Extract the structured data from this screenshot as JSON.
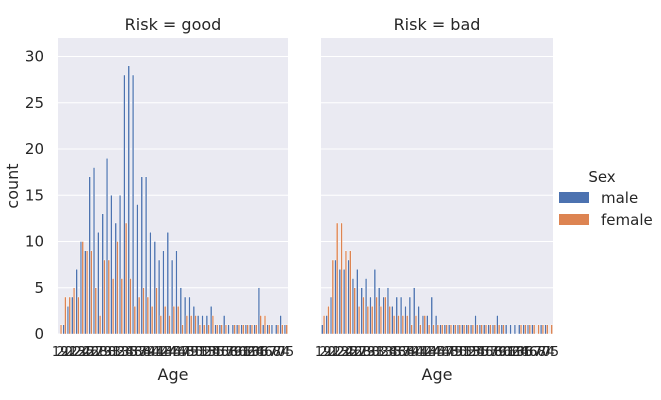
{
  "chart_data": {
    "type": "bar",
    "hue_title": "Sex",
    "x_label": "Age",
    "y_label": "count",
    "ylim": [
      0,
      32
    ],
    "y_ticks": [
      0,
      5,
      10,
      15,
      20,
      25,
      30
    ],
    "grid": true,
    "legend_position": "right",
    "categories": [
      19,
      20,
      21,
      22,
      23,
      24,
      25,
      26,
      27,
      28,
      29,
      30,
      31,
      32,
      33,
      34,
      35,
      36,
      37,
      38,
      39,
      40,
      41,
      42,
      43,
      44,
      45,
      46,
      47,
      48,
      49,
      50,
      51,
      52,
      53,
      54,
      55,
      56,
      57,
      58,
      59,
      60,
      61,
      62,
      63,
      64,
      65,
      66,
      67,
      68,
      70,
      74,
      75
    ],
    "series_styles": [
      {
        "name": "male",
        "color": "#4c72b0"
      },
      {
        "name": "female",
        "color": "#dd8452"
      }
    ],
    "facets": [
      {
        "title": "Risk = good",
        "series": [
          {
            "name": "male",
            "values": [
              0,
              1,
              3,
              4,
              7,
              10,
              9,
              17,
              18,
              11,
              13,
              19,
              15,
              12,
              15,
              28,
              29,
              28,
              14,
              17,
              17,
              11,
              10,
              8,
              9,
              11,
              8,
              9,
              5,
              4,
              4,
              3,
              2,
              2,
              2,
              3,
              1,
              1,
              2,
              1,
              1,
              1,
              1,
              1,
              1,
              1,
              5,
              1,
              1,
              1,
              1,
              2,
              1
            ]
          },
          {
            "name": "female",
            "values": [
              1,
              4,
              4,
              5,
              4,
              10,
              9,
              9,
              5,
              2,
              8,
              8,
              6,
              10,
              6,
              12,
              6,
              3,
              4,
              5,
              4,
              3,
              5,
              2,
              3,
              2,
              3,
              3,
              1,
              2,
              2,
              2,
              1,
              1,
              1,
              2,
              1,
              1,
              1,
              0,
              1,
              1,
              1,
              1,
              1,
              1,
              2,
              2,
              1,
              0,
              1,
              1,
              1
            ]
          }
        ]
      },
      {
        "title": "Risk = bad",
        "series": [
          {
            "name": "male",
            "values": [
              1,
              2,
              4,
              8,
              7,
              7,
              8,
              6,
              7,
              5,
              6,
              4,
              7,
              5,
              4,
              5,
              3,
              4,
              4,
              3,
              4,
              5,
              3,
              2,
              2,
              4,
              2,
              1,
              1,
              1,
              1,
              1,
              1,
              1,
              1,
              2,
              1,
              1,
              1,
              1,
              2,
              1,
              1,
              1,
              1,
              1,
              1,
              1,
              1,
              0,
              1,
              1,
              0
            ]
          },
          {
            "name": "female",
            "values": [
              2,
              3,
              8,
              12,
              12,
              9,
              9,
              5,
              3,
              4,
              3,
              3,
              4,
              3,
              4,
              3,
              2,
              2,
              2,
              2,
              1,
              2,
              1,
              2,
              1,
              1,
              1,
              1,
              1,
              1,
              1,
              1,
              1,
              1,
              1,
              1,
              1,
              1,
              1,
              1,
              1,
              1,
              0,
              0,
              0,
              1,
              1,
              1,
              1,
              1,
              1,
              1,
              1
            ]
          }
        ]
      }
    ]
  }
}
